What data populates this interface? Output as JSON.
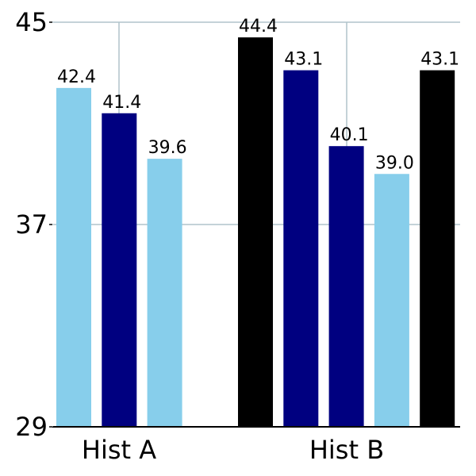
{
  "chart_data": {
    "type": "bar",
    "categories": [
      "Hist A",
      "Hist B"
    ],
    "groups": [
      {
        "category": "Hist A",
        "bars": [
          {
            "value": 42.4,
            "label": "42.4",
            "color": "#87ceeb"
          },
          {
            "value": 41.4,
            "label": "41.4",
            "color": "#000080"
          },
          {
            "value": 39.6,
            "label": "39.6",
            "color": "#87ceeb"
          }
        ]
      },
      {
        "category": "Hist B",
        "bars": [
          {
            "value": 44.4,
            "label": "44.4",
            "color": "#000000"
          },
          {
            "value": 43.1,
            "label": "43.1",
            "color": "#000080"
          },
          {
            "value": 40.1,
            "label": "40.1",
            "color": "#000080"
          },
          {
            "value": 39.0,
            "label": "39.0",
            "color": "#87ceeb"
          },
          {
            "value": 43.1,
            "label": "43.1",
            "color": "#000000"
          }
        ]
      }
    ],
    "yticks": [
      "29",
      "37",
      "45"
    ],
    "ylim": [
      29,
      45
    ],
    "grid": true,
    "grid_color": "#b0c4cc",
    "title": "",
    "xlabel": "",
    "ylabel": ""
  }
}
